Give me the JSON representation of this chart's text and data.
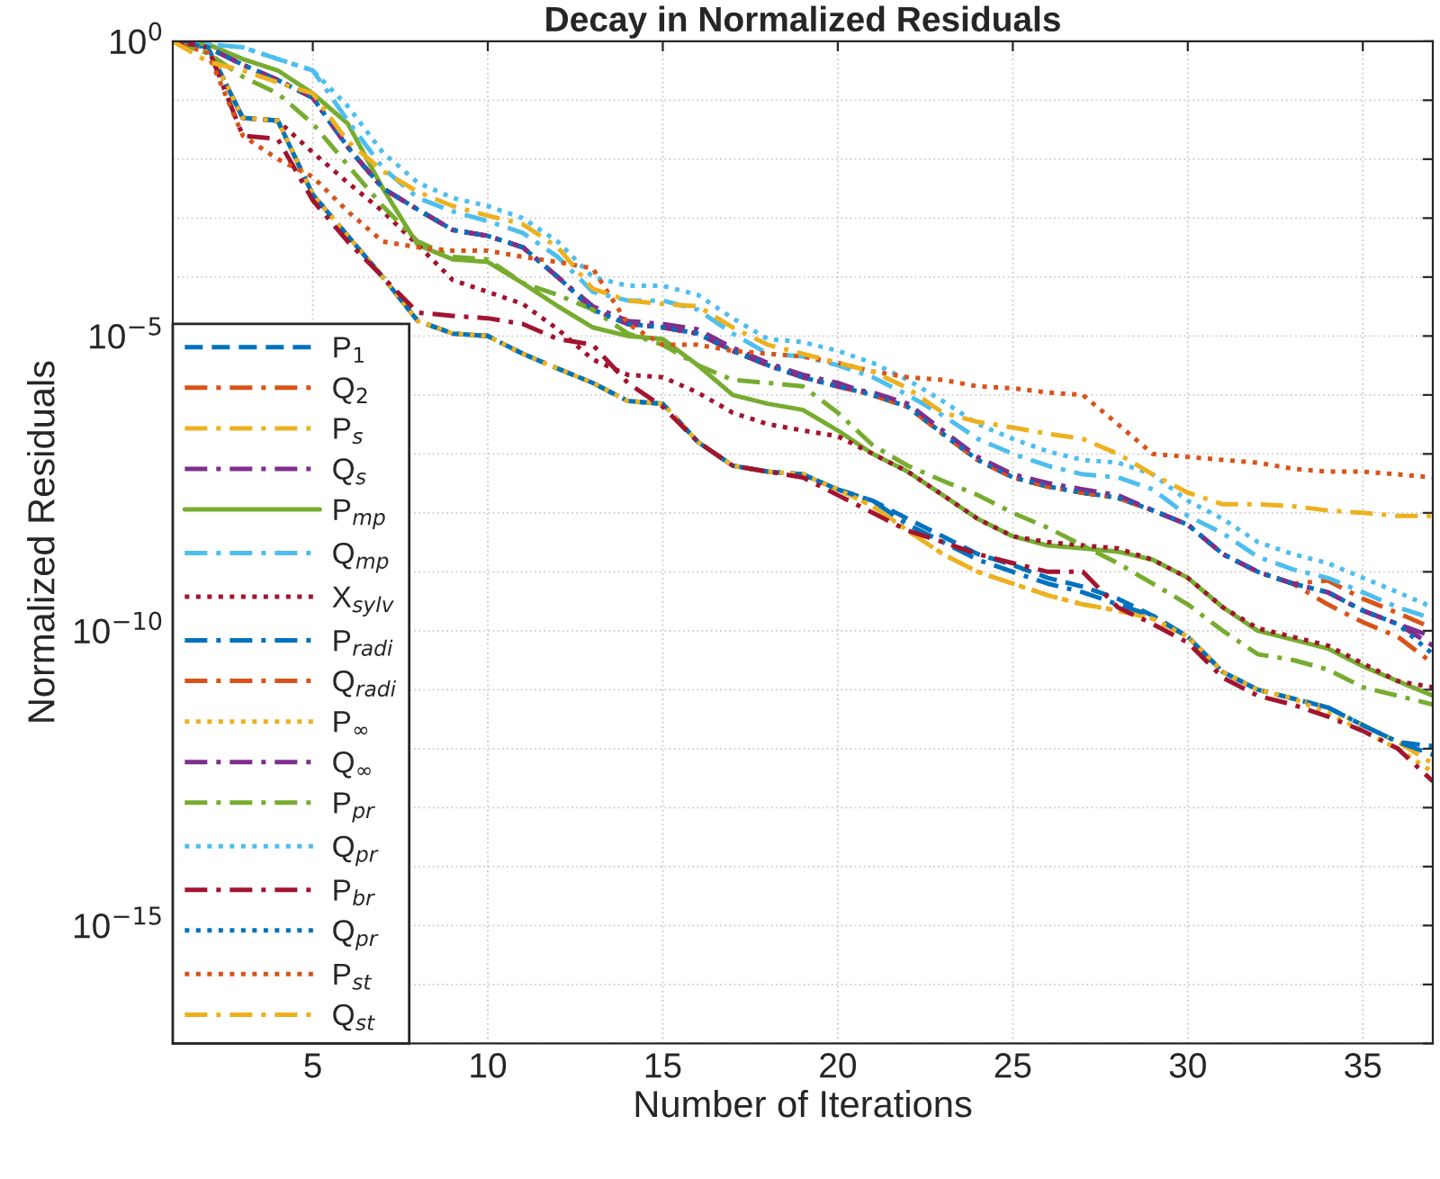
{
  "chart_data": {
    "type": "line",
    "title": "Decay in Normalized Residuals",
    "xlabel": "Number of Iterations",
    "ylabel": "Normalized Residuals",
    "x": [
      1,
      2,
      3,
      4,
      5,
      6,
      7,
      8,
      9,
      10,
      11,
      12,
      13,
      14,
      15,
      16,
      17,
      18,
      19,
      20,
      21,
      22,
      23,
      24,
      25,
      26,
      27,
      28,
      29,
      30,
      31,
      32,
      33,
      34,
      35,
      36,
      37
    ],
    "xlim": [
      1,
      37
    ],
    "xticks": [
      5,
      10,
      15,
      20,
      25,
      30,
      35
    ],
    "log": "y",
    "ylim": [
      1e-17,
      1
    ],
    "yticks": [
      {
        "value": 1e-17,
        "label": null
      },
      {
        "value": 1e-16,
        "label": null
      },
      {
        "value": 1e-15,
        "label": "10$^{−15}$"
      },
      {
        "value": 1e-14,
        "label": null
      },
      {
        "value": 1e-13,
        "label": null
      },
      {
        "value": 1e-12,
        "label": null
      },
      {
        "value": 1e-11,
        "label": null
      },
      {
        "value": 1e-10,
        "label": "10$^{−10}$"
      },
      {
        "value": 1e-09,
        "label": null
      },
      {
        "value": 1e-08,
        "label": null
      },
      {
        "value": 1e-07,
        "label": null
      },
      {
        "value": 1e-06,
        "label": null
      },
      {
        "value": 1e-05,
        "label": "10$^{−5}$"
      },
      {
        "value": 0.0001,
        "label": null
      },
      {
        "value": 0.001,
        "label": null
      },
      {
        "value": 0.01,
        "label": null
      },
      {
        "value": 0.1,
        "label": null
      },
      {
        "value": 1,
        "label": "10$^{0}$"
      }
    ],
    "grid": true,
    "legend": "bottom left",
    "series": [
      {
        "name": "P$_{1}$",
        "color": "#0072bd",
        "line_style": "dashed",
        "values": [
          1,
          0.79,
          0.05,
          0.045,
          0.0025,
          0.0005,
          0.0001,
          1.8e-05,
          1.1e-05,
          1e-05,
          5e-06,
          2.8e-06,
          1.6e-06,
          7.9e-07,
          7.1e-07,
          1.6e-07,
          6.3e-08,
          5e-08,
          4.5e-08,
          2.5e-08,
          1.6e-08,
          7.9e-09,
          4e-09,
          2e-09,
          1.3e-09,
          7.9e-10,
          5.6e-10,
          3.5e-10,
          1.8e-10,
          7.9e-11,
          2e-11,
          1e-11,
          7.1e-12,
          5e-12,
          2.5e-12,
          1.3e-12,
          1.1e-12
        ]
      },
      {
        "name": "Q$_{2}$",
        "color": "#d95319",
        "line_style": "dashdot",
        "values": [
          1,
          0.79,
          0.4,
          0.22,
          0.11,
          0.016,
          0.0032,
          0.0014,
          0.00063,
          0.0005,
          0.00032,
          0.0001,
          2.8e-05,
          1.6e-05,
          1.4e-05,
          1.1e-05,
          5.6e-06,
          3.2e-06,
          2e-06,
          1.4e-06,
          1e-06,
          6.3e-07,
          2.2e-07,
          7.9e-08,
          4e-08,
          2.8e-08,
          2.2e-08,
          1.8e-08,
          1.1e-08,
          6.3e-09,
          2e-09,
          1e-09,
          6.3e-10,
          7.1e-10,
          3.5e-10,
          2e-10,
          1.1e-10
        ]
      },
      {
        "name": "P$_{s}$",
        "color": "#edb120",
        "line_style": "dashdot",
        "values": [
          1,
          0.79,
          0.05,
          0.045,
          0.0025,
          0.0005,
          0.0001,
          1.8e-05,
          1.1e-05,
          1e-05,
          5e-06,
          2.8e-06,
          1.6e-06,
          7.9e-07,
          7.1e-07,
          1.6e-07,
          6.3e-08,
          5e-08,
          4.5e-08,
          2.5e-08,
          1.3e-08,
          5e-09,
          2e-09,
          1e-09,
          6.3e-10,
          4e-10,
          2.8e-10,
          2.2e-10,
          1.6e-10,
          7.9e-11,
          2e-11,
          1e-11,
          7.1e-12,
          5e-12,
          2.5e-12,
          1.3e-12,
          5.6e-13
        ]
      },
      {
        "name": "Q$_{s}$",
        "color": "#7e2f8e",
        "line_style": "dashdot",
        "values": [
          1,
          0.79,
          0.4,
          0.22,
          0.11,
          0.016,
          0.0032,
          0.0014,
          0.00063,
          0.0005,
          0.00032,
          0.0001,
          3.2e-05,
          1.8e-05,
          1.6e-05,
          1.3e-05,
          6.3e-06,
          3.5e-06,
          2.2e-06,
          1.6e-06,
          1e-06,
          6.3e-07,
          2.2e-07,
          7.9e-08,
          4e-08,
          2.8e-08,
          2.2e-08,
          1.8e-08,
          1.1e-08,
          6.3e-09,
          2e-09,
          1e-09,
          6.3e-10,
          4.5e-10,
          2.2e-10,
          1.3e-10,
          7.9e-11
        ]
      },
      {
        "name": "P$_{mp}$",
        "color": "#77ac30",
        "line_style": "solid",
        "values": [
          1,
          0.89,
          0.5,
          0.32,
          0.13,
          0.04,
          0.0032,
          0.00035,
          0.0002,
          0.00018,
          7.9e-05,
          3.2e-05,
          1.4e-05,
          1e-05,
          8.9e-06,
          3.2e-06,
          1e-06,
          7.1e-07,
          5.6e-07,
          2.5e-07,
          1e-07,
          5e-08,
          2e-08,
          7.9e-09,
          4e-09,
          2.8e-09,
          2.5e-09,
          2.2e-09,
          1.6e-09,
          7.9e-10,
          2.5e-10,
          1e-10,
          7.1e-11,
          5e-11,
          2.5e-11,
          1.4e-11,
          7.9e-12
        ]
      },
      {
        "name": "Q$_{mp}$",
        "color": "#4dbeee",
        "line_style": "dashdot",
        "values": [
          1,
          0.89,
          0.79,
          0.5,
          0.32,
          0.045,
          0.0071,
          0.0022,
          0.0013,
          0.00089,
          0.00056,
          0.00022,
          5.6e-05,
          4e-05,
          4e-05,
          2.8e-05,
          1.1e-05,
          5e-06,
          4.5e-06,
          3.2e-06,
          2e-06,
          1e-06,
          4.5e-07,
          1.8e-07,
          1e-07,
          6.3e-08,
          4.5e-08,
          4e-08,
          2.5e-08,
          8.9e-09,
          4.5e-09,
          1.8e-09,
          1.1e-09,
          7.9e-10,
          4.5e-10,
          2.5e-10,
          1.6e-10
        ]
      },
      {
        "name": "X$_{sylv}$",
        "color": "#a2142f",
        "line_style": "dotted",
        "values": [
          1,
          0.79,
          0.05,
          0.045,
          0.013,
          0.004,
          0.0013,
          0.00035,
          8.9e-05,
          5.6e-05,
          3.5e-05,
          1.3e-05,
          4e-06,
          2.2e-06,
          2e-06,
          1.1e-06,
          5e-07,
          3.2e-07,
          2.5e-07,
          2e-07,
          1e-07,
          5e-08,
          2e-08,
          7.9e-09,
          4e-09,
          3.2e-09,
          2.8e-09,
          2.5e-09,
          1.6e-09,
          7.9e-10,
          2.5e-10,
          1.1e-10,
          7.9e-11,
          5.6e-11,
          2.8e-11,
          1.4e-11,
          1.1e-11
        ]
      },
      {
        "name": "P$_{radi}$",
        "color": "#0072bd",
        "line_style": "dashdot",
        "values": [
          1,
          0.79,
          0.05,
          0.045,
          0.0025,
          0.0005,
          0.0001,
          1.8e-05,
          1.1e-05,
          1e-05,
          5e-06,
          2.8e-06,
          1.6e-06,
          7.9e-07,
          7.1e-07,
          1.6e-07,
          6.3e-08,
          5e-08,
          4.5e-08,
          2.5e-08,
          1.6e-08,
          6.3e-09,
          3.2e-09,
          1.6e-09,
          1e-09,
          6.3e-10,
          4.5e-10,
          2.8e-10,
          1.8e-10,
          7.9e-11,
          2e-11,
          1e-11,
          7.1e-12,
          5e-12,
          2.5e-12,
          1.3e-12,
          7.9e-13
        ]
      },
      {
        "name": "Q$_{radi}$",
        "color": "#d95319",
        "line_style": "dashdot",
        "values": [
          1,
          0.79,
          0.4,
          0.22,
          0.11,
          0.016,
          0.0032,
          0.0014,
          0.00063,
          0.0005,
          0.00032,
          0.0001,
          2.8e-05,
          1.6e-05,
          1.4e-05,
          1.1e-05,
          5.6e-06,
          3.2e-06,
          2e-06,
          1.4e-06,
          1e-06,
          6.3e-07,
          2.2e-07,
          7.9e-08,
          4e-08,
          2.8e-08,
          2.2e-08,
          1.8e-08,
          1.1e-08,
          6.3e-09,
          2e-09,
          1e-09,
          6.3e-10,
          2.8e-10,
          1.4e-10,
          7.9e-11,
          2.8e-11
        ]
      },
      {
        "name": "P$_{∞}$",
        "color": "#edb120",
        "line_style": "dotted",
        "values": [
          1,
          0.79,
          0.05,
          0.045,
          0.0025,
          0.0005,
          0.0001,
          1.8e-05,
          1.1e-05,
          1e-05,
          5e-06,
          2.8e-06,
          1.6e-06,
          7.9e-07,
          7.1e-07,
          1.6e-07,
          6.3e-08,
          5e-08,
          4.5e-08,
          2.5e-08,
          1.3e-08,
          5e-09,
          2e-09,
          1e-09,
          6.3e-10,
          4e-10,
          2.8e-10,
          2.2e-10,
          1.6e-10,
          7.9e-11,
          2e-11,
          1e-11,
          7.1e-12,
          4e-12,
          2e-12,
          1e-12,
          4e-13
        ]
      },
      {
        "name": "Q$_{∞}$",
        "color": "#7e2f8e",
        "line_style": "dashdot",
        "values": [
          1,
          0.79,
          0.4,
          0.22,
          0.11,
          0.016,
          0.0032,
          0.0014,
          0.00063,
          0.0005,
          0.00032,
          0.0001,
          2.8e-05,
          1.6e-05,
          1.4e-05,
          1.1e-05,
          5.6e-06,
          3.2e-06,
          2e-06,
          1.4e-06,
          1.1e-06,
          7.1e-07,
          2.5e-07,
          8.9e-08,
          4.5e-08,
          3.2e-08,
          2.5e-08,
          2e-08,
          1.1e-08,
          6.3e-09,
          2e-09,
          1e-09,
          6.3e-10,
          4.5e-10,
          2.2e-10,
          1.3e-10,
          5.6e-11
        ]
      },
      {
        "name": "P$_{pr}$",
        "color": "#77ac30",
        "line_style": "dashdot",
        "values": [
          1,
          0.63,
          0.25,
          0.13,
          0.04,
          0.0079,
          0.0016,
          0.0004,
          0.00022,
          0.0002,
          7.9e-05,
          5e-05,
          2.8e-05,
          1.1e-05,
          7.1e-06,
          3.2e-06,
          1.8e-06,
          1.6e-06,
          1.4e-06,
          5e-07,
          1.4e-07,
          6.3e-08,
          3.5e-08,
          2e-08,
          1e-08,
          5.6e-09,
          2.8e-09,
          1.4e-09,
          6.3e-10,
          2.8e-10,
          1e-10,
          4e-11,
          3.2e-11,
          2.2e-11,
          1.1e-11,
          7.9e-12,
          5.6e-12
        ]
      },
      {
        "name": "Q$_{pr}$",
        "color": "#4dbeee",
        "line_style": "dotted",
        "values": [
          1,
          0.89,
          0.79,
          0.5,
          0.32,
          0.079,
          0.013,
          0.004,
          0.0022,
          0.0016,
          0.001,
          0.0004,
          0.0001,
          7.1e-05,
          7.1e-05,
          5e-05,
          2e-05,
          8.9e-06,
          7.9e-06,
          5.6e-06,
          3.5e-06,
          1.8e-06,
          7.9e-07,
          3.2e-07,
          1.8e-07,
          1.1e-07,
          7.9e-08,
          7.1e-08,
          4.5e-08,
          1.6e-08,
          7.9e-09,
          3.2e-09,
          2e-09,
          1.4e-09,
          7.9e-10,
          4.5e-10,
          2.5e-10
        ]
      },
      {
        "name": "P$_{br}$",
        "color": "#a2142f",
        "line_style": "dashdot",
        "values": [
          1,
          0.79,
          0.025,
          0.022,
          0.002,
          0.0004,
          0.0001,
          2.5e-05,
          2.2e-05,
          2e-05,
          1.6e-05,
          8.9e-06,
          7.1e-06,
          1.6e-06,
          6.3e-07,
          1.6e-07,
          6.3e-08,
          5e-08,
          4e-08,
          2e-08,
          1e-08,
          5e-09,
          3.2e-09,
          2e-09,
          1.4e-09,
          1e-09,
          1e-09,
          2.5e-10,
          1.3e-10,
          6.3e-11,
          1.6e-11,
          7.9e-12,
          5.6e-12,
          3.5e-12,
          2e-12,
          1e-12,
          2.8e-13
        ]
      },
      {
        "name": "Q$_{pr}$",
        "color": "#0072bd",
        "line_style": "dotted",
        "values": [
          1,
          0.79,
          0.4,
          0.22,
          0.11,
          0.016,
          0.0032,
          0.0014,
          0.00063,
          0.0005,
          0.00032,
          0.0001,
          2.8e-05,
          1.6e-05,
          1.4e-05,
          1.1e-05,
          5.6e-06,
          3.2e-06,
          2e-06,
          1.4e-06,
          1e-06,
          6.3e-07,
          2.2e-07,
          7.9e-08,
          4e-08,
          2.8e-08,
          2.2e-08,
          1.8e-08,
          1.1e-08,
          6.3e-09,
          2e-09,
          1e-09,
          6.3e-10,
          4.5e-10,
          2.2e-10,
          1.3e-10,
          4e-11
        ]
      },
      {
        "name": "P$_{st}$",
        "color": "#d95319",
        "line_style": "dotted",
        "values": [
          1,
          0.63,
          0.025,
          0.01,
          0.005,
          0.0013,
          0.0004,
          0.00032,
          0.00028,
          0.00028,
          0.00022,
          0.00018,
          0.00014,
          1.6e-05,
          7.1e-06,
          7.1e-06,
          5.6e-06,
          5e-06,
          4.5e-06,
          3.5e-06,
          2.5e-06,
          2e-06,
          1.8e-06,
          1.4e-06,
          1.3e-06,
          1.1e-06,
          1e-06,
          3.2e-07,
          1e-07,
          8.9e-08,
          7.9e-08,
          7.1e-08,
          5.6e-08,
          5e-08,
          5e-08,
          4.5e-08,
          4e-08
        ]
      },
      {
        "name": "Q$_{st}$",
        "color": "#edb120",
        "line_style": "dashdot",
        "values": [
          1,
          0.45,
          0.32,
          0.2,
          0.13,
          0.02,
          0.0063,
          0.0028,
          0.0016,
          0.0011,
          0.00079,
          0.00032,
          6.3e-05,
          4e-05,
          3.5e-05,
          3.2e-05,
          1.4e-05,
          7.1e-06,
          5e-06,
          3.5e-06,
          2.5e-06,
          1.3e-06,
          5e-07,
          3.5e-07,
          2.8e-07,
          2.2e-07,
          1.8e-07,
          1e-07,
          4.5e-08,
          2.2e-08,
          1.4e-08,
          1.4e-08,
          1.3e-08,
          1.1e-08,
          1e-08,
          8.9e-09,
          8.9e-09
        ]
      }
    ]
  }
}
